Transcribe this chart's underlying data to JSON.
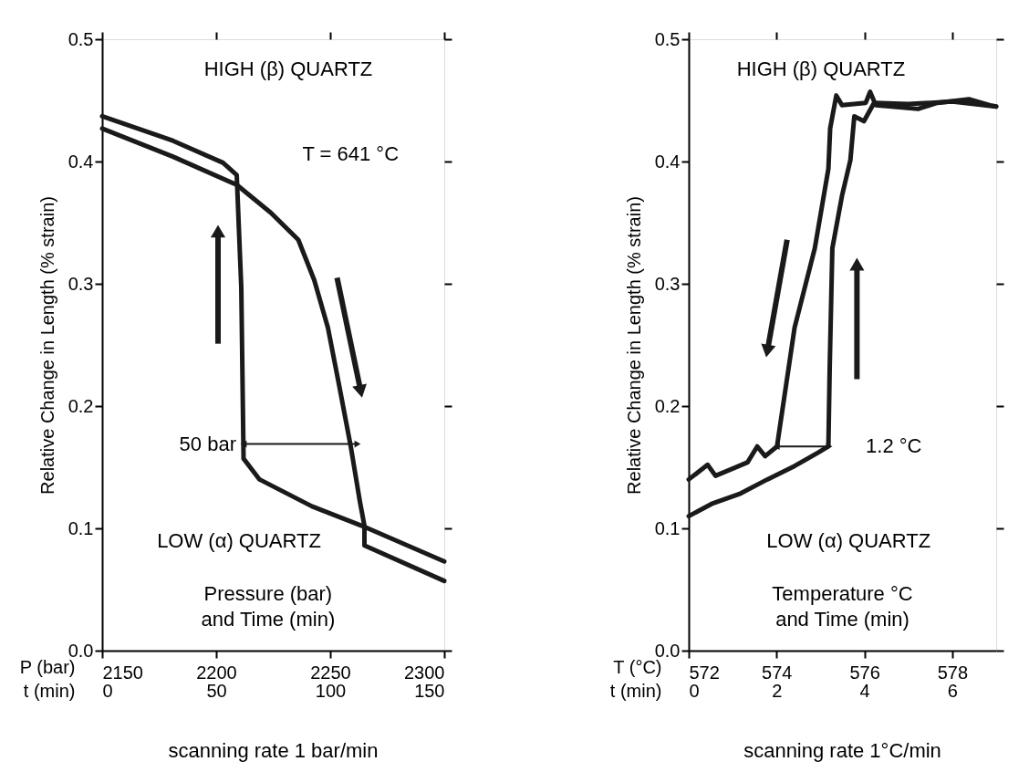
{
  "chart_data": [
    {
      "type": "line",
      "xlabel": "P (bar)",
      "x2label": "t (min)",
      "ylabel": "Relative Change in Length (% strain)",
      "xlim": [
        2150,
        2300
      ],
      "xticks": [
        2150,
        2200,
        2250,
        2300
      ],
      "x2lim": [
        0,
        150
      ],
      "x2ticks": [
        0,
        50,
        100,
        150
      ],
      "ylim": [
        0,
        0.5
      ],
      "yticks": [
        {
          "value": 0,
          "label": "0.0"
        },
        0.1,
        0.2,
        0.3,
        0.4,
        0.5
      ],
      "line_style": "solid",
      "series": [
        {
          "color": "#1a1a1a",
          "x": [
            2150,
            2181,
            2203,
            2209,
            2211,
            2212,
            2219,
            2242,
            2264,
            2300
          ],
          "values": [
            0.437,
            0.417,
            0.399,
            0.389,
            0.297,
            0.157,
            0.14,
            0.118,
            0.102,
            0.073
          ]
        },
        {
          "color": "#1a1a1a",
          "x": [
            2150,
            2181,
            2209,
            2224,
            2236,
            2243,
            2249,
            2254,
            2259,
            2263,
            2265,
            2265,
            2300
          ],
          "values": [
            0.427,
            0.404,
            0.381,
            0.358,
            0.336,
            0.303,
            0.264,
            0.216,
            0.167,
            0.122,
            0.102,
            0.086,
            0.057
          ]
        }
      ],
      "annotations": [
        "HIGH (β) QUARTZ",
        "T = 641 °C",
        "LOW (α) QUARTZ",
        "Pressure (bar)\nand Time (min)",
        "scanning rate 1 bar/min",
        {
          "text": "50 bar",
          "x": 2212,
          "y": 0.169
        }
      ]
    },
    {
      "type": "line",
      "xlabel": "T (°C)",
      "x2label": "t (min)",
      "ylabel": "Relative Change in Length (% strain)",
      "xlim": [
        572,
        579
      ],
      "xticks": [
        572,
        574,
        576,
        578
      ],
      "x2lim": [
        0,
        7
      ],
      "x2ticks": [
        0,
        2,
        4,
        6
      ],
      "ylim": [
        0,
        0.5
      ],
      "yticks": [
        {
          "value": 0,
          "label": "0.0"
        },
        0.1,
        0.2,
        0.3,
        0.4,
        0.5
      ],
      "line_style": "solid",
      "series": [
        {
          "color": "#1a1a1a",
          "x": [
            572.0,
            572.43,
            572.61,
            573.34,
            573.56,
            573.74,
            574.01,
            574.41,
            574.87,
            575.18,
            575.22,
            575.36,
            575.49,
            576.03,
            576.13,
            576.26,
            577.22,
            577.66,
            578.38,
            578.86,
            579.0
          ],
          "values": [
            0.14,
            0.152,
            0.143,
            0.154,
            0.167,
            0.159,
            0.167,
            0.264,
            0.329,
            0.394,
            0.427,
            0.454,
            0.446,
            0.448,
            0.457,
            0.446,
            0.443,
            0.448,
            0.451,
            0.446,
            0.445
          ]
        },
        {
          "color": "#1a1a1a",
          "x": [
            572.0,
            572.52,
            573.15,
            573.79,
            574.41,
            574.95,
            575.18,
            575.21,
            575.27,
            575.49,
            575.68,
            575.77,
            575.99,
            576.22,
            577.0,
            578.0,
            579.0
          ],
          "values": [
            0.11,
            0.12,
            0.128,
            0.14,
            0.151,
            0.162,
            0.167,
            0.232,
            0.329,
            0.372,
            0.401,
            0.437,
            0.433,
            0.448,
            0.447,
            0.449,
            0.445
          ]
        }
      ],
      "annotations": [
        "HIGH (β) QUARTZ",
        "LOW (α) QUARTZ",
        "Temperature °C\nand Time (min)",
        "scanning rate 1°C/min",
        {
          "text": "1.2 °C",
          "x": 575.2,
          "y": 0.167
        }
      ]
    }
  ]
}
